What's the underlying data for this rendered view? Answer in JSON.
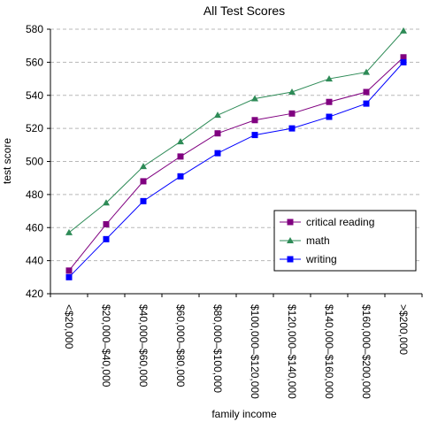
{
  "chart_data": {
    "type": "line",
    "title": "All Test Scores",
    "xlabel": "family income",
    "ylabel": "test score",
    "categories": [
      "<$20,000",
      "$20,000–$40,000",
      "$40,000–$60,000",
      "$60,000–$80,000",
      "$80,000–$100,000",
      "$100,000–$120,000",
      "$120,000–$140,000",
      "$140,000–$160,000",
      "$160,000–$200,000",
      ">$200,000"
    ],
    "ylim": [
      420,
      580
    ],
    "yticks": [
      420,
      440,
      460,
      480,
      500,
      520,
      540,
      560,
      580
    ],
    "grid": true,
    "legend_position": "bottom-right",
    "series": [
      {
        "name": "critical reading",
        "color": "#800080",
        "marker": "square",
        "values": [
          434,
          462,
          488,
          503,
          517,
          525,
          529,
          536,
          542,
          563
        ]
      },
      {
        "name": "math",
        "color": "#2e8b57",
        "marker": "triangle",
        "values": [
          457,
          475,
          497,
          512,
          528,
          538,
          542,
          550,
          554,
          579
        ]
      },
      {
        "name": "writing",
        "color": "#0000ff",
        "marker": "square",
        "values": [
          430,
          453,
          476,
          491,
          505,
          516,
          520,
          527,
          535,
          560
        ]
      }
    ]
  }
}
